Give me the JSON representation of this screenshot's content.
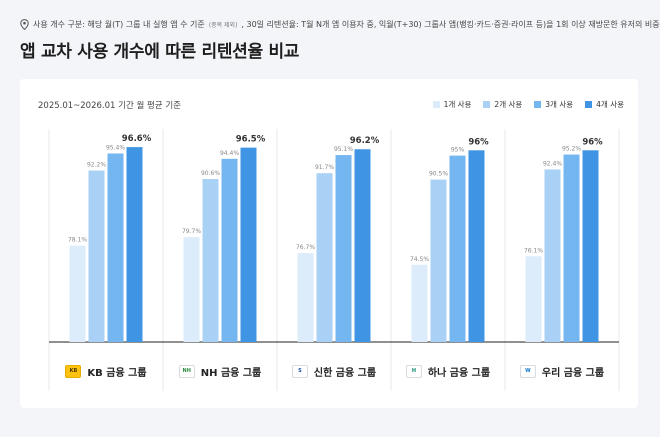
{
  "header": {
    "note_main": "사용 개수 구분: 해당 월(T) 그룹 내 실행 앱 수 기준",
    "note_small": "(중복 제외)",
    "note_rest": ", 30일 리텐션율: T월 N개 앱 이용자 중, 익월(T+30) 그룹사 앱(뱅킹·카드·증권·라이프 등)을 1회 이상 재방문한 유저의 비중",
    "title": "앱 교차 사용 개수에 따른 리텐션율 비교",
    "period": "2025.01~2026.01 기간 월 평균 기준"
  },
  "colors": {
    "background": "#f4f5f8",
    "card": "#ffffff",
    "series": [
      "#ddecfb",
      "#a9d1f6",
      "#74b6f0",
      "#3f95e4"
    ],
    "divider": "#e6e8ec",
    "baseline": "#222222",
    "value_label": "#888888",
    "max_label": "#333333"
  },
  "chart_data": {
    "type": "bar",
    "categories": [
      "KB 금융 그룹",
      "NH 금융 그룹",
      "신한 금융 그룹",
      "하나 금융 그룹",
      "우리 금융 그룹"
    ],
    "logos": [
      "kb-logo-icon",
      "nh-logo-icon",
      "shinhan-logo-icon",
      "hana-logo-icon",
      "woori-logo-icon"
    ],
    "logo_text": [
      "KB",
      "NH",
      "S",
      "H",
      "W"
    ],
    "series": [
      {
        "name": "1개 사용",
        "values": [
          78.1,
          79.7,
          76.7,
          74.5,
          76.1
        ],
        "labels": [
          "78.1%",
          "79.7%",
          "76.7%",
          "74.5%",
          "76.1%"
        ]
      },
      {
        "name": "2개 사용",
        "values": [
          92.2,
          90.6,
          91.7,
          90.5,
          92.4
        ],
        "labels": [
          "92.2%",
          "90.6%",
          "91.7%",
          "90.5%",
          "92.4%"
        ]
      },
      {
        "name": "3개 사용",
        "values": [
          95.4,
          94.4,
          95.1,
          95,
          95.2
        ],
        "labels": [
          "95.4%",
          "94.4%",
          "95.1%",
          "95%",
          "95.2%"
        ]
      },
      {
        "name": "4개 사용",
        "values": [
          96.6,
          96.5,
          96.2,
          96,
          96
        ],
        "labels": [
          "96.6%",
          "96.5%",
          "96.2%",
          "96%",
          "96%"
        ]
      }
    ],
    "highlight_series": 3,
    "ylim": [
      60,
      100
    ],
    "grid": false,
    "legend": "top-right"
  }
}
